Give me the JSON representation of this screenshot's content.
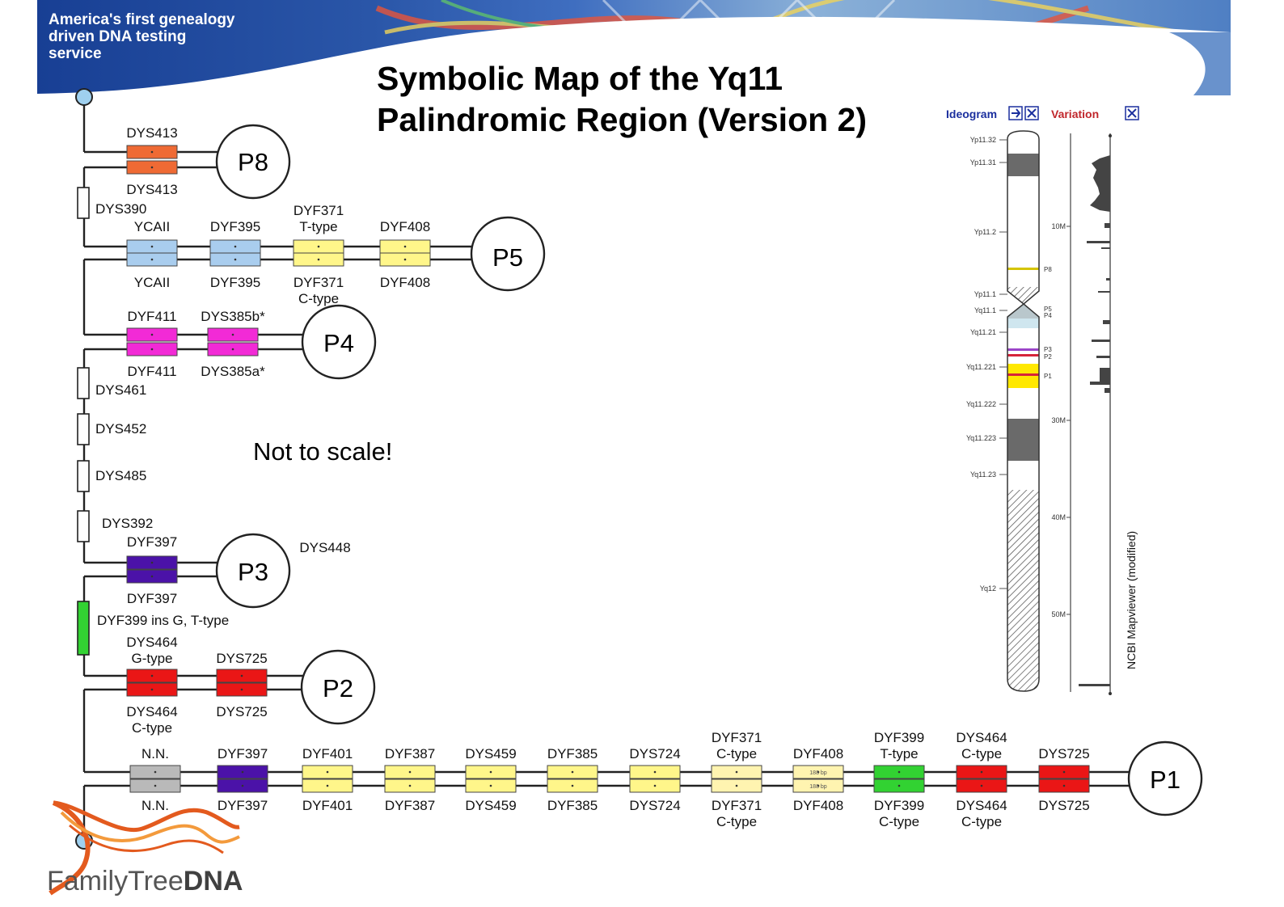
{
  "header": {
    "tagline": "America's first genealogy\ndriven DNA testing\nservice",
    "title": "Symbolic Map of the Yq11\nPalindromic Region (Version 2)"
  },
  "diagram": {
    "note": "Not to scale!",
    "palindromes": [
      "P8",
      "P5",
      "P4",
      "P3",
      "P2",
      "P1"
    ],
    "spacers": [
      "DYS390",
      "DYS461",
      "DYS452",
      "DYS485",
      "DYS392",
      "DYF399 ins G, T-type"
    ],
    "labels": {
      "p8_top": "DYS413",
      "p8_bottom": "DYS413",
      "p5": [
        {
          "top": "YCAII",
          "bottom": "YCAII"
        },
        {
          "top": "DYF395",
          "bottom": "DYF395"
        },
        {
          "top": "DYF371\nT-type",
          "bottom": "DYF371\nC-type"
        },
        {
          "top": "DYF408",
          "bottom": "DYF408"
        }
      ],
      "p4": [
        {
          "top": "DYF411",
          "bottom": "DYF411"
        },
        {
          "top": "DYS385b*",
          "bottom": "DYS385a*"
        }
      ],
      "p3_top": "DYF397",
      "p3_bottom": "DYF397",
      "p3_side": "DYS448",
      "p2": [
        {
          "top": "DYS464\nG-type",
          "bottom": "DYS464\nC-type"
        },
        {
          "top": "DYS725",
          "bottom": "DYS725"
        }
      ],
      "p1": [
        {
          "top": "N.N.",
          "bottom": "N.N."
        },
        {
          "top": "DYF397",
          "bottom": "DYF397"
        },
        {
          "top": "DYF401",
          "bottom": "DYF401"
        },
        {
          "top": "DYF387",
          "bottom": "DYF387"
        },
        {
          "top": "DYS459",
          "bottom": "DYS459"
        },
        {
          "top": "DYF385",
          "bottom": "DYF385"
        },
        {
          "top": "DYS724",
          "bottom": "DYS724"
        },
        {
          "top": "DYF371\nC-type",
          "bottom": "DYF371\nC-type"
        },
        {
          "top": "DYF408",
          "bottom": "DYF408"
        },
        {
          "top": "DYF399\nT-type",
          "bottom": "DYF399\nC-type"
        },
        {
          "top": "DYS464\nC-type",
          "bottom": "DYS464\nC-type"
        },
        {
          "top": "DYS725",
          "bottom": "DYS725"
        }
      ],
      "bp_small": "188 bp"
    },
    "colors": {
      "orange": "#ef6a34",
      "blue": "#a9cdee",
      "yellow": "#fff68a",
      "magenta": "#f22ad6",
      "purple": "#4b12a8",
      "red": "#ea1616",
      "green": "#32d232",
      "gray": "#b9b9b9",
      "lightyellow": "#fff4b0"
    }
  },
  "ideogram": {
    "header_left": "Ideogram",
    "header_right": "Variation",
    "vertical_caption": "NCBI Mapviewer (modified)",
    "bands": [
      "Yp11.32",
      "Yp11.31",
      "Yp11.2",
      "Yp11.1",
      "Yq11.1",
      "Yq11.21",
      "Yq11.221",
      "Yq11.222",
      "Yq11.223",
      "Yq11.23",
      "Yq12"
    ],
    "scale": [
      "10M",
      "30M",
      "40M",
      "50M"
    ],
    "p_labels": [
      "P8",
      "P5",
      "P4",
      "P3",
      "P2",
      "P1"
    ]
  },
  "logo": {
    "text_light": "FamilyTree",
    "text_bold": "DNA"
  }
}
